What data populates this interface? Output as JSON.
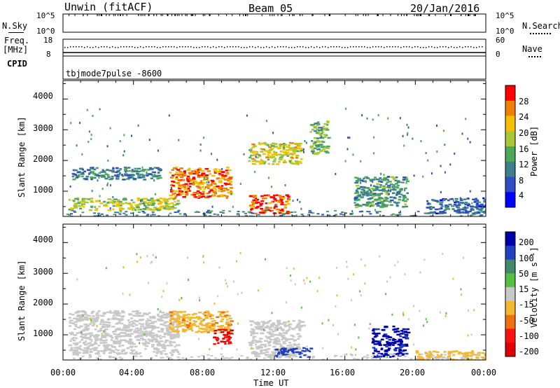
{
  "header": {
    "station": "Unwin (fitACF)",
    "beam": "Beam 05",
    "date": "20/Jan/2016"
  },
  "nsky_panel": {
    "left_label": "N.Sky",
    "left_ticks": [
      "10^5",
      "10^0"
    ],
    "right_ticks": [
      "10^5",
      "10^0"
    ],
    "right_label": "N.Search"
  },
  "freq_panel": {
    "left_label_1": "Freq.",
    "left_label_2": "[MHz]",
    "left_ticks": [
      "18",
      "8"
    ],
    "right_ticks": [
      "60",
      "0"
    ],
    "right_label": "Nave"
  },
  "cpid": {
    "label": "CPID",
    "value": "tbjmode7pulse -8600"
  },
  "x_axis": {
    "label": "Time UT",
    "tick_labels": [
      "00:00",
      "04:00",
      "08:00",
      "12:00",
      "16:00",
      "20:00",
      "00:00"
    ]
  },
  "power_panel": {
    "y_label": "Slant Range [km]",
    "y_ticks": [
      "4000",
      "3000",
      "2000",
      "1000"
    ],
    "colorbar_label": "Power [dB]",
    "colorbar_ticks": [
      "28",
      "24",
      "20",
      "16",
      "12",
      "8",
      "4"
    ]
  },
  "velocity_panel": {
    "y_label": "Slant Range [km]",
    "y_ticks": [
      "4000",
      "3000",
      "2000",
      "1000"
    ],
    "colorbar_label": "Velocity [m s⁻¹]",
    "colorbar_ticks": [
      "200",
      "100",
      "50",
      "15",
      "-15",
      "-50",
      "-100",
      "-200"
    ]
  },
  "chart_data": [
    {
      "type": "heatmap",
      "title": "Power",
      "xlabel": "Time UT",
      "ylabel": "Slant Range [km]",
      "xlim": [
        0,
        24
      ],
      "ylim": [
        180,
        4600
      ],
      "x_unit": "hours UT",
      "colorbar": {
        "label": "Power [dB]",
        "ticks": [
          4,
          8,
          12,
          16,
          20,
          24,
          28
        ],
        "colors": [
          "#0000ff",
          "#2e4ec2",
          "#3d7f8c",
          "#4ea85a",
          "#a8c838",
          "#f4c000",
          "#f08000",
          "#ff0000"
        ]
      },
      "echo_regions": [
        {
          "t": [
            0.3,
            6.5
          ],
          "range": [
            400,
            800
          ],
          "power": 18
        },
        {
          "t": [
            0.5,
            5.5
          ],
          "range": [
            1400,
            1800
          ],
          "power": 10
        },
        {
          "t": [
            6.0,
            9.5
          ],
          "range": [
            800,
            1800
          ],
          "power": 26
        },
        {
          "t": [
            10.5,
            12.8
          ],
          "range": [
            300,
            900
          ],
          "power": 28
        },
        {
          "t": [
            10.5,
            13.5
          ],
          "range": [
            1900,
            2600
          ],
          "power": 20
        },
        {
          "t": [
            14.0,
            15.0
          ],
          "range": [
            2200,
            3300
          ],
          "power": 15
        },
        {
          "t": [
            16.5,
            19.5
          ],
          "range": [
            500,
            1500
          ],
          "power": 12
        },
        {
          "t": [
            20.5,
            24.0
          ],
          "range": [
            300,
            800
          ],
          "power": 8
        }
      ]
    },
    {
      "type": "heatmap",
      "title": "Velocity",
      "xlabel": "Time UT",
      "ylabel": "Slant Range [km]",
      "xlim": [
        0,
        24
      ],
      "ylim": [
        180,
        4600
      ],
      "x_unit": "hours UT",
      "colorbar": {
        "label": "Velocity [m s⁻¹]",
        "ticks": [
          200,
          100,
          50,
          15,
          -15,
          -50,
          -100,
          -200
        ],
        "colors": [
          "#0000aa",
          "#2040c0",
          "#3e8a6a",
          "#56c040",
          "#c8c8c8",
          "#f4b830",
          "#f07010",
          "#ff1010",
          "#e00000"
        ]
      },
      "echo_regions": [
        {
          "t": [
            0.3,
            6.5
          ],
          "range": [
            400,
            1800
          ],
          "velocity": 0
        },
        {
          "t": [
            6.0,
            9.5
          ],
          "range": [
            1100,
            1800
          ],
          "velocity": -40
        },
        {
          "t": [
            8.5,
            9.5
          ],
          "range": [
            700,
            1200
          ],
          "velocity": -200
        },
        {
          "t": [
            10.5,
            13.5
          ],
          "range": [
            300,
            1500
          ],
          "velocity": 0
        },
        {
          "t": [
            12.0,
            14.0
          ],
          "range": [
            300,
            600
          ],
          "velocity": 150
        },
        {
          "t": [
            17.5,
            19.5
          ],
          "range": [
            300,
            1300
          ],
          "velocity": 220
        },
        {
          "t": [
            20.0,
            24.0
          ],
          "range": [
            200,
            500
          ],
          "velocity": -30
        }
      ]
    }
  ]
}
